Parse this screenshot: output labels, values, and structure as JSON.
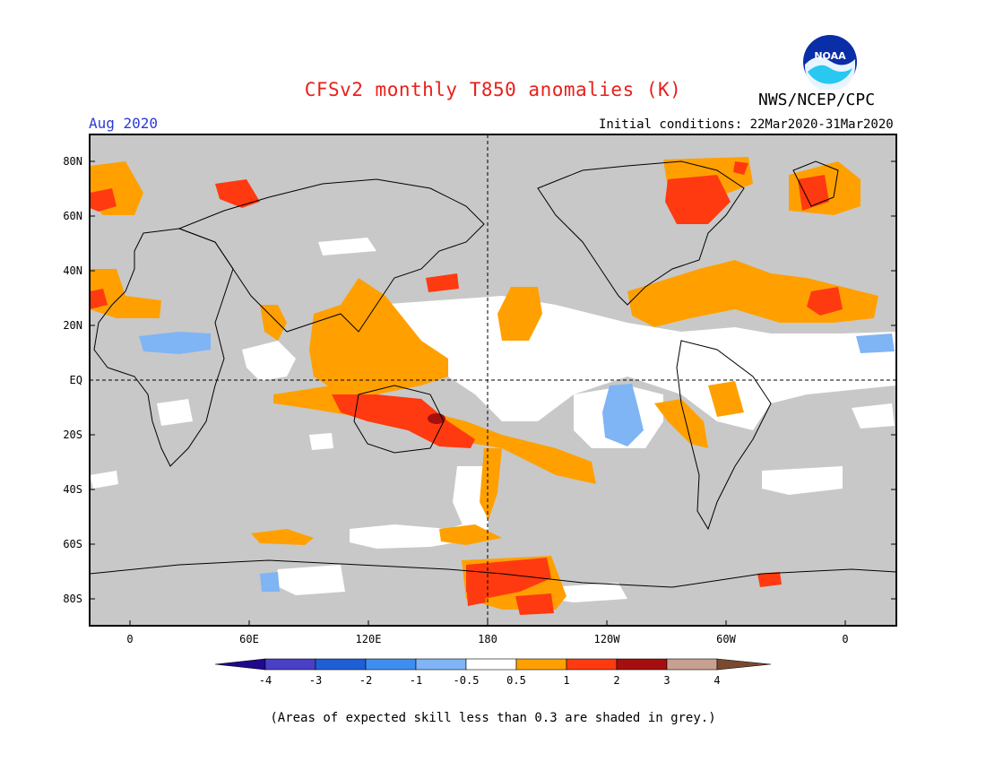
{
  "title": "CFSv2 monthly T850 anomalies (K)",
  "agency": "NWS/NCEP/CPC",
  "valid_month": "Aug 2020",
  "initial_conditions": "Initial conditions: 22Mar2020-31Mar2020",
  "lat_labels": [
    "80N",
    "60N",
    "40N",
    "20N",
    "EQ",
    "20S",
    "40S",
    "60S",
    "80S"
  ],
  "lon_labels": [
    "0",
    "60E",
    "120E",
    "180",
    "120W",
    "60W",
    "0"
  ],
  "colorbar": {
    "levels": [
      "-4",
      "-3",
      "-2",
      "-1",
      "-0.5",
      "0.5",
      "1",
      "2",
      "3",
      "4"
    ],
    "colors": [
      "#1f0a8c",
      "#4a3fc7",
      "#1f5fd6",
      "#3e8ef0",
      "#7fb4f5",
      "#ffffff",
      "#ffa000",
      "#ff3a10",
      "#a50f0f",
      "#c8a090",
      "#7a4a30"
    ]
  },
  "skill_mask_color": "#c8c8c8",
  "footnote": "(Areas of expected skill less than 0.3 are shaded in grey.)",
  "logo_text": "NOAA"
}
